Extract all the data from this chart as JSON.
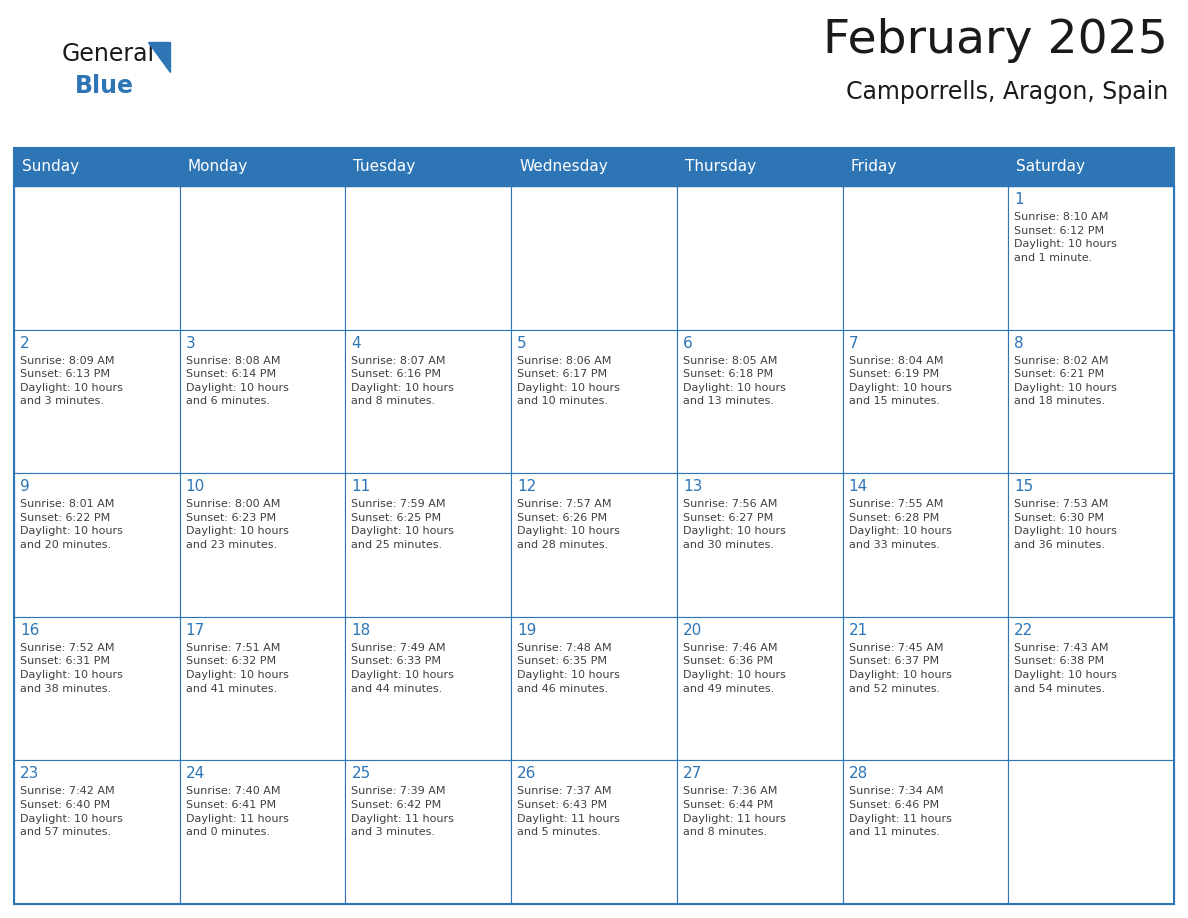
{
  "title": "February 2025",
  "subtitle": "Camporrells, Aragon, Spain",
  "header_bg": "#2E75B6",
  "header_text": "#FFFFFF",
  "border_color": "#2E75B6",
  "cell_bg": "#FFFFFF",
  "title_color": "#1a1a1a",
  "subtitle_color": "#1a1a1a",
  "day_num_color": "#2E75B6",
  "cell_text_color": "#404040",
  "logo_general_color": "#1a1a1a",
  "logo_blue_color": "#2E75B6",
  "logo_triangle_color": "#2E75B6",
  "day_names": [
    "Sunday",
    "Monday",
    "Tuesday",
    "Wednesday",
    "Thursday",
    "Friday",
    "Saturday"
  ],
  "weeks": [
    [
      {
        "day": "",
        "info": ""
      },
      {
        "day": "",
        "info": ""
      },
      {
        "day": "",
        "info": ""
      },
      {
        "day": "",
        "info": ""
      },
      {
        "day": "",
        "info": ""
      },
      {
        "day": "",
        "info": ""
      },
      {
        "day": "1",
        "info": "Sunrise: 8:10 AM\nSunset: 6:12 PM\nDaylight: 10 hours\nand 1 minute."
      }
    ],
    [
      {
        "day": "2",
        "info": "Sunrise: 8:09 AM\nSunset: 6:13 PM\nDaylight: 10 hours\nand 3 minutes."
      },
      {
        "day": "3",
        "info": "Sunrise: 8:08 AM\nSunset: 6:14 PM\nDaylight: 10 hours\nand 6 minutes."
      },
      {
        "day": "4",
        "info": "Sunrise: 8:07 AM\nSunset: 6:16 PM\nDaylight: 10 hours\nand 8 minutes."
      },
      {
        "day": "5",
        "info": "Sunrise: 8:06 AM\nSunset: 6:17 PM\nDaylight: 10 hours\nand 10 minutes."
      },
      {
        "day": "6",
        "info": "Sunrise: 8:05 AM\nSunset: 6:18 PM\nDaylight: 10 hours\nand 13 minutes."
      },
      {
        "day": "7",
        "info": "Sunrise: 8:04 AM\nSunset: 6:19 PM\nDaylight: 10 hours\nand 15 minutes."
      },
      {
        "day": "8",
        "info": "Sunrise: 8:02 AM\nSunset: 6:21 PM\nDaylight: 10 hours\nand 18 minutes."
      }
    ],
    [
      {
        "day": "9",
        "info": "Sunrise: 8:01 AM\nSunset: 6:22 PM\nDaylight: 10 hours\nand 20 minutes."
      },
      {
        "day": "10",
        "info": "Sunrise: 8:00 AM\nSunset: 6:23 PM\nDaylight: 10 hours\nand 23 minutes."
      },
      {
        "day": "11",
        "info": "Sunrise: 7:59 AM\nSunset: 6:25 PM\nDaylight: 10 hours\nand 25 minutes."
      },
      {
        "day": "12",
        "info": "Sunrise: 7:57 AM\nSunset: 6:26 PM\nDaylight: 10 hours\nand 28 minutes."
      },
      {
        "day": "13",
        "info": "Sunrise: 7:56 AM\nSunset: 6:27 PM\nDaylight: 10 hours\nand 30 minutes."
      },
      {
        "day": "14",
        "info": "Sunrise: 7:55 AM\nSunset: 6:28 PM\nDaylight: 10 hours\nand 33 minutes."
      },
      {
        "day": "15",
        "info": "Sunrise: 7:53 AM\nSunset: 6:30 PM\nDaylight: 10 hours\nand 36 minutes."
      }
    ],
    [
      {
        "day": "16",
        "info": "Sunrise: 7:52 AM\nSunset: 6:31 PM\nDaylight: 10 hours\nand 38 minutes."
      },
      {
        "day": "17",
        "info": "Sunrise: 7:51 AM\nSunset: 6:32 PM\nDaylight: 10 hours\nand 41 minutes."
      },
      {
        "day": "18",
        "info": "Sunrise: 7:49 AM\nSunset: 6:33 PM\nDaylight: 10 hours\nand 44 minutes."
      },
      {
        "day": "19",
        "info": "Sunrise: 7:48 AM\nSunset: 6:35 PM\nDaylight: 10 hours\nand 46 minutes."
      },
      {
        "day": "20",
        "info": "Sunrise: 7:46 AM\nSunset: 6:36 PM\nDaylight: 10 hours\nand 49 minutes."
      },
      {
        "day": "21",
        "info": "Sunrise: 7:45 AM\nSunset: 6:37 PM\nDaylight: 10 hours\nand 52 minutes."
      },
      {
        "day": "22",
        "info": "Sunrise: 7:43 AM\nSunset: 6:38 PM\nDaylight: 10 hours\nand 54 minutes."
      }
    ],
    [
      {
        "day": "23",
        "info": "Sunrise: 7:42 AM\nSunset: 6:40 PM\nDaylight: 10 hours\nand 57 minutes."
      },
      {
        "day": "24",
        "info": "Sunrise: 7:40 AM\nSunset: 6:41 PM\nDaylight: 11 hours\nand 0 minutes."
      },
      {
        "day": "25",
        "info": "Sunrise: 7:39 AM\nSunset: 6:42 PM\nDaylight: 11 hours\nand 3 minutes."
      },
      {
        "day": "26",
        "info": "Sunrise: 7:37 AM\nSunset: 6:43 PM\nDaylight: 11 hours\nand 5 minutes."
      },
      {
        "day": "27",
        "info": "Sunrise: 7:36 AM\nSunset: 6:44 PM\nDaylight: 11 hours\nand 8 minutes."
      },
      {
        "day": "28",
        "info": "Sunrise: 7:34 AM\nSunset: 6:46 PM\nDaylight: 11 hours\nand 11 minutes."
      },
      {
        "day": "",
        "info": ""
      }
    ]
  ],
  "figsize": [
    11.88,
    9.18
  ],
  "dpi": 100
}
